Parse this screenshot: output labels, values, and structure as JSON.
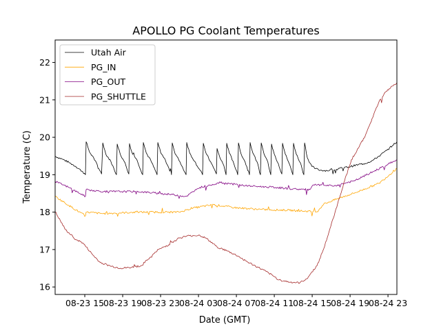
{
  "chart_data": {
    "type": "line",
    "title": "APOLLO PG Coolant Temperatures",
    "xlabel": "Date (GMT)",
    "ylabel": "Temperature (C)",
    "x_unit": "hours since 08-23 11:52 GMT",
    "xlim": [
      0,
      36.07
    ],
    "ylim": [
      15.8,
      22.6
    ],
    "grid": false,
    "legend_position": "top-left",
    "x_ticks": [
      {
        "t": 3.13,
        "label": "08-23 15"
      },
      {
        "t": 7.13,
        "label": "08-23 19"
      },
      {
        "t": 11.13,
        "label": "08-23 23"
      },
      {
        "t": 15.13,
        "label": "08-24 03"
      },
      {
        "t": 19.13,
        "label": "08-24 07"
      },
      {
        "t": 23.13,
        "label": "08-24 11"
      },
      {
        "t": 27.13,
        "label": "08-24 15"
      },
      {
        "t": 31.13,
        "label": "08-24 19"
      },
      {
        "t": 35.13,
        "label": "08-24 23"
      }
    ],
    "y_ticks": [
      {
        "v": 16,
        "label": "16"
      },
      {
        "v": 17,
        "label": "17"
      },
      {
        "v": 18,
        "label": "18"
      },
      {
        "v": 19,
        "label": "19"
      },
      {
        "v": 20,
        "label": "20"
      },
      {
        "v": 21,
        "label": "21"
      },
      {
        "v": 22,
        "label": "22"
      }
    ],
    "series": [
      {
        "name": "Utah Air",
        "color": "#000000",
        "x": [
          0.0,
          0.73,
          1.45,
          2.18,
          2.91,
          3.2,
          3.27,
          3.64,
          4.07,
          4.9,
          5.03,
          5.35,
          5.89,
          6.47,
          6.55,
          6.87,
          7.38,
          7.78,
          7.85,
          8.1,
          8.66,
          9.24,
          9.31,
          9.62,
          10.1,
          10.76,
          10.84,
          11.15,
          11.65,
          12.28,
          12.36,
          12.66,
          13.18,
          13.82,
          13.89,
          14.2,
          14.72,
          15.56,
          15.64,
          15.95,
          16.5,
          17.02,
          17.09,
          17.4,
          17.8,
          18.04,
          18.11,
          18.38,
          18.78,
          19.27,
          19.35,
          19.62,
          20.05,
          20.51,
          20.58,
          20.87,
          21.3,
          21.67,
          21.75,
          22.04,
          22.45,
          22.76,
          22.84,
          23.13,
          23.55,
          23.93,
          24.0,
          24.29,
          24.7,
          25.09,
          25.16,
          25.45,
          25.88,
          26.25,
          26.33,
          26.62,
          27.1,
          27.49,
          28.0,
          28.7,
          29.5,
          30.3,
          31.2,
          32.0,
          32.7,
          33.5,
          34.2,
          35.0,
          35.6,
          36.07
        ],
        "y": [
          19.49,
          19.42,
          19.33,
          19.22,
          19.08,
          19.0,
          19.88,
          19.6,
          19.45,
          19.02,
          19.85,
          19.55,
          19.35,
          19.0,
          19.82,
          19.55,
          19.32,
          19.02,
          19.83,
          19.6,
          19.38,
          19.0,
          19.86,
          19.58,
          19.38,
          19.0,
          19.86,
          19.58,
          19.38,
          19.0,
          19.85,
          19.56,
          19.34,
          19.0,
          19.86,
          19.58,
          19.36,
          19.0,
          19.84,
          19.56,
          19.3,
          19.02,
          19.7,
          19.45,
          19.25,
          19.0,
          19.84,
          19.58,
          19.36,
          19.0,
          19.85,
          19.56,
          19.34,
          19.0,
          19.86,
          19.58,
          19.35,
          19.0,
          19.85,
          19.56,
          19.34,
          19.0,
          19.82,
          19.55,
          19.3,
          19.02,
          19.84,
          19.55,
          19.3,
          19.0,
          19.84,
          19.55,
          19.32,
          19.0,
          19.85,
          19.45,
          19.22,
          19.16,
          19.12,
          19.11,
          19.13,
          19.18,
          19.22,
          19.27,
          19.3,
          19.38,
          19.5,
          19.65,
          19.78,
          19.88
        ]
      },
      {
        "name": "PG_IN",
        "color": "#ffa500",
        "x": [
          0.0,
          1.45,
          3.2,
          3.27,
          5.09,
          8.73,
          13.09,
          14.55,
          16.73,
          18.91,
          21.82,
          24.73,
          27.64,
          28.36,
          29.82,
          32.0,
          34.18,
          36.07
        ],
        "y": [
          18.42,
          18.18,
          17.9,
          18.0,
          17.96,
          18.0,
          18.0,
          18.11,
          18.2,
          18.12,
          18.07,
          18.05,
          18.01,
          18.22,
          18.36,
          18.55,
          18.77,
          19.16
        ]
      },
      {
        "name": "PG_OUT",
        "color": "#800080",
        "x": [
          0.0,
          1.45,
          3.2,
          3.27,
          5.09,
          8.73,
          12.36,
          13.82,
          15.27,
          17.45,
          20.36,
          23.27,
          25.09,
          26.89,
          27.27,
          29.45,
          31.64,
          36.07
        ],
        "y": [
          18.82,
          18.66,
          18.42,
          18.6,
          18.55,
          18.55,
          18.47,
          18.42,
          18.66,
          18.79,
          18.7,
          18.66,
          18.62,
          18.6,
          18.73,
          18.7,
          18.84,
          19.4
        ]
      },
      {
        "name": "PG_SHUTTLE",
        "color": "#a52a2a",
        "x": [
          0.0,
          1.09,
          2.18,
          2.91,
          4.0,
          4.73,
          5.82,
          6.91,
          8.0,
          9.09,
          9.82,
          10.91,
          12.0,
          13.09,
          14.18,
          15.27,
          16.0,
          17.09,
          18.18,
          19.27,
          20.36,
          21.45,
          22.55,
          23.64,
          24.73,
          25.82,
          26.55,
          27.64,
          28.36,
          29.09,
          29.82,
          30.55,
          31.27,
          32.0,
          32.73,
          33.45,
          34.18,
          34.91,
          35.64,
          36.07
        ],
        "y": [
          18.01,
          17.53,
          17.27,
          17.18,
          16.85,
          16.66,
          16.56,
          16.5,
          16.52,
          16.57,
          16.74,
          17.0,
          17.13,
          17.31,
          17.37,
          17.38,
          17.29,
          17.07,
          16.96,
          16.83,
          16.66,
          16.52,
          16.37,
          16.19,
          16.13,
          16.11,
          16.22,
          16.57,
          17.03,
          17.62,
          18.23,
          18.84,
          19.4,
          19.71,
          20.04,
          20.5,
          20.95,
          21.22,
          21.37,
          21.46
        ]
      }
    ]
  }
}
